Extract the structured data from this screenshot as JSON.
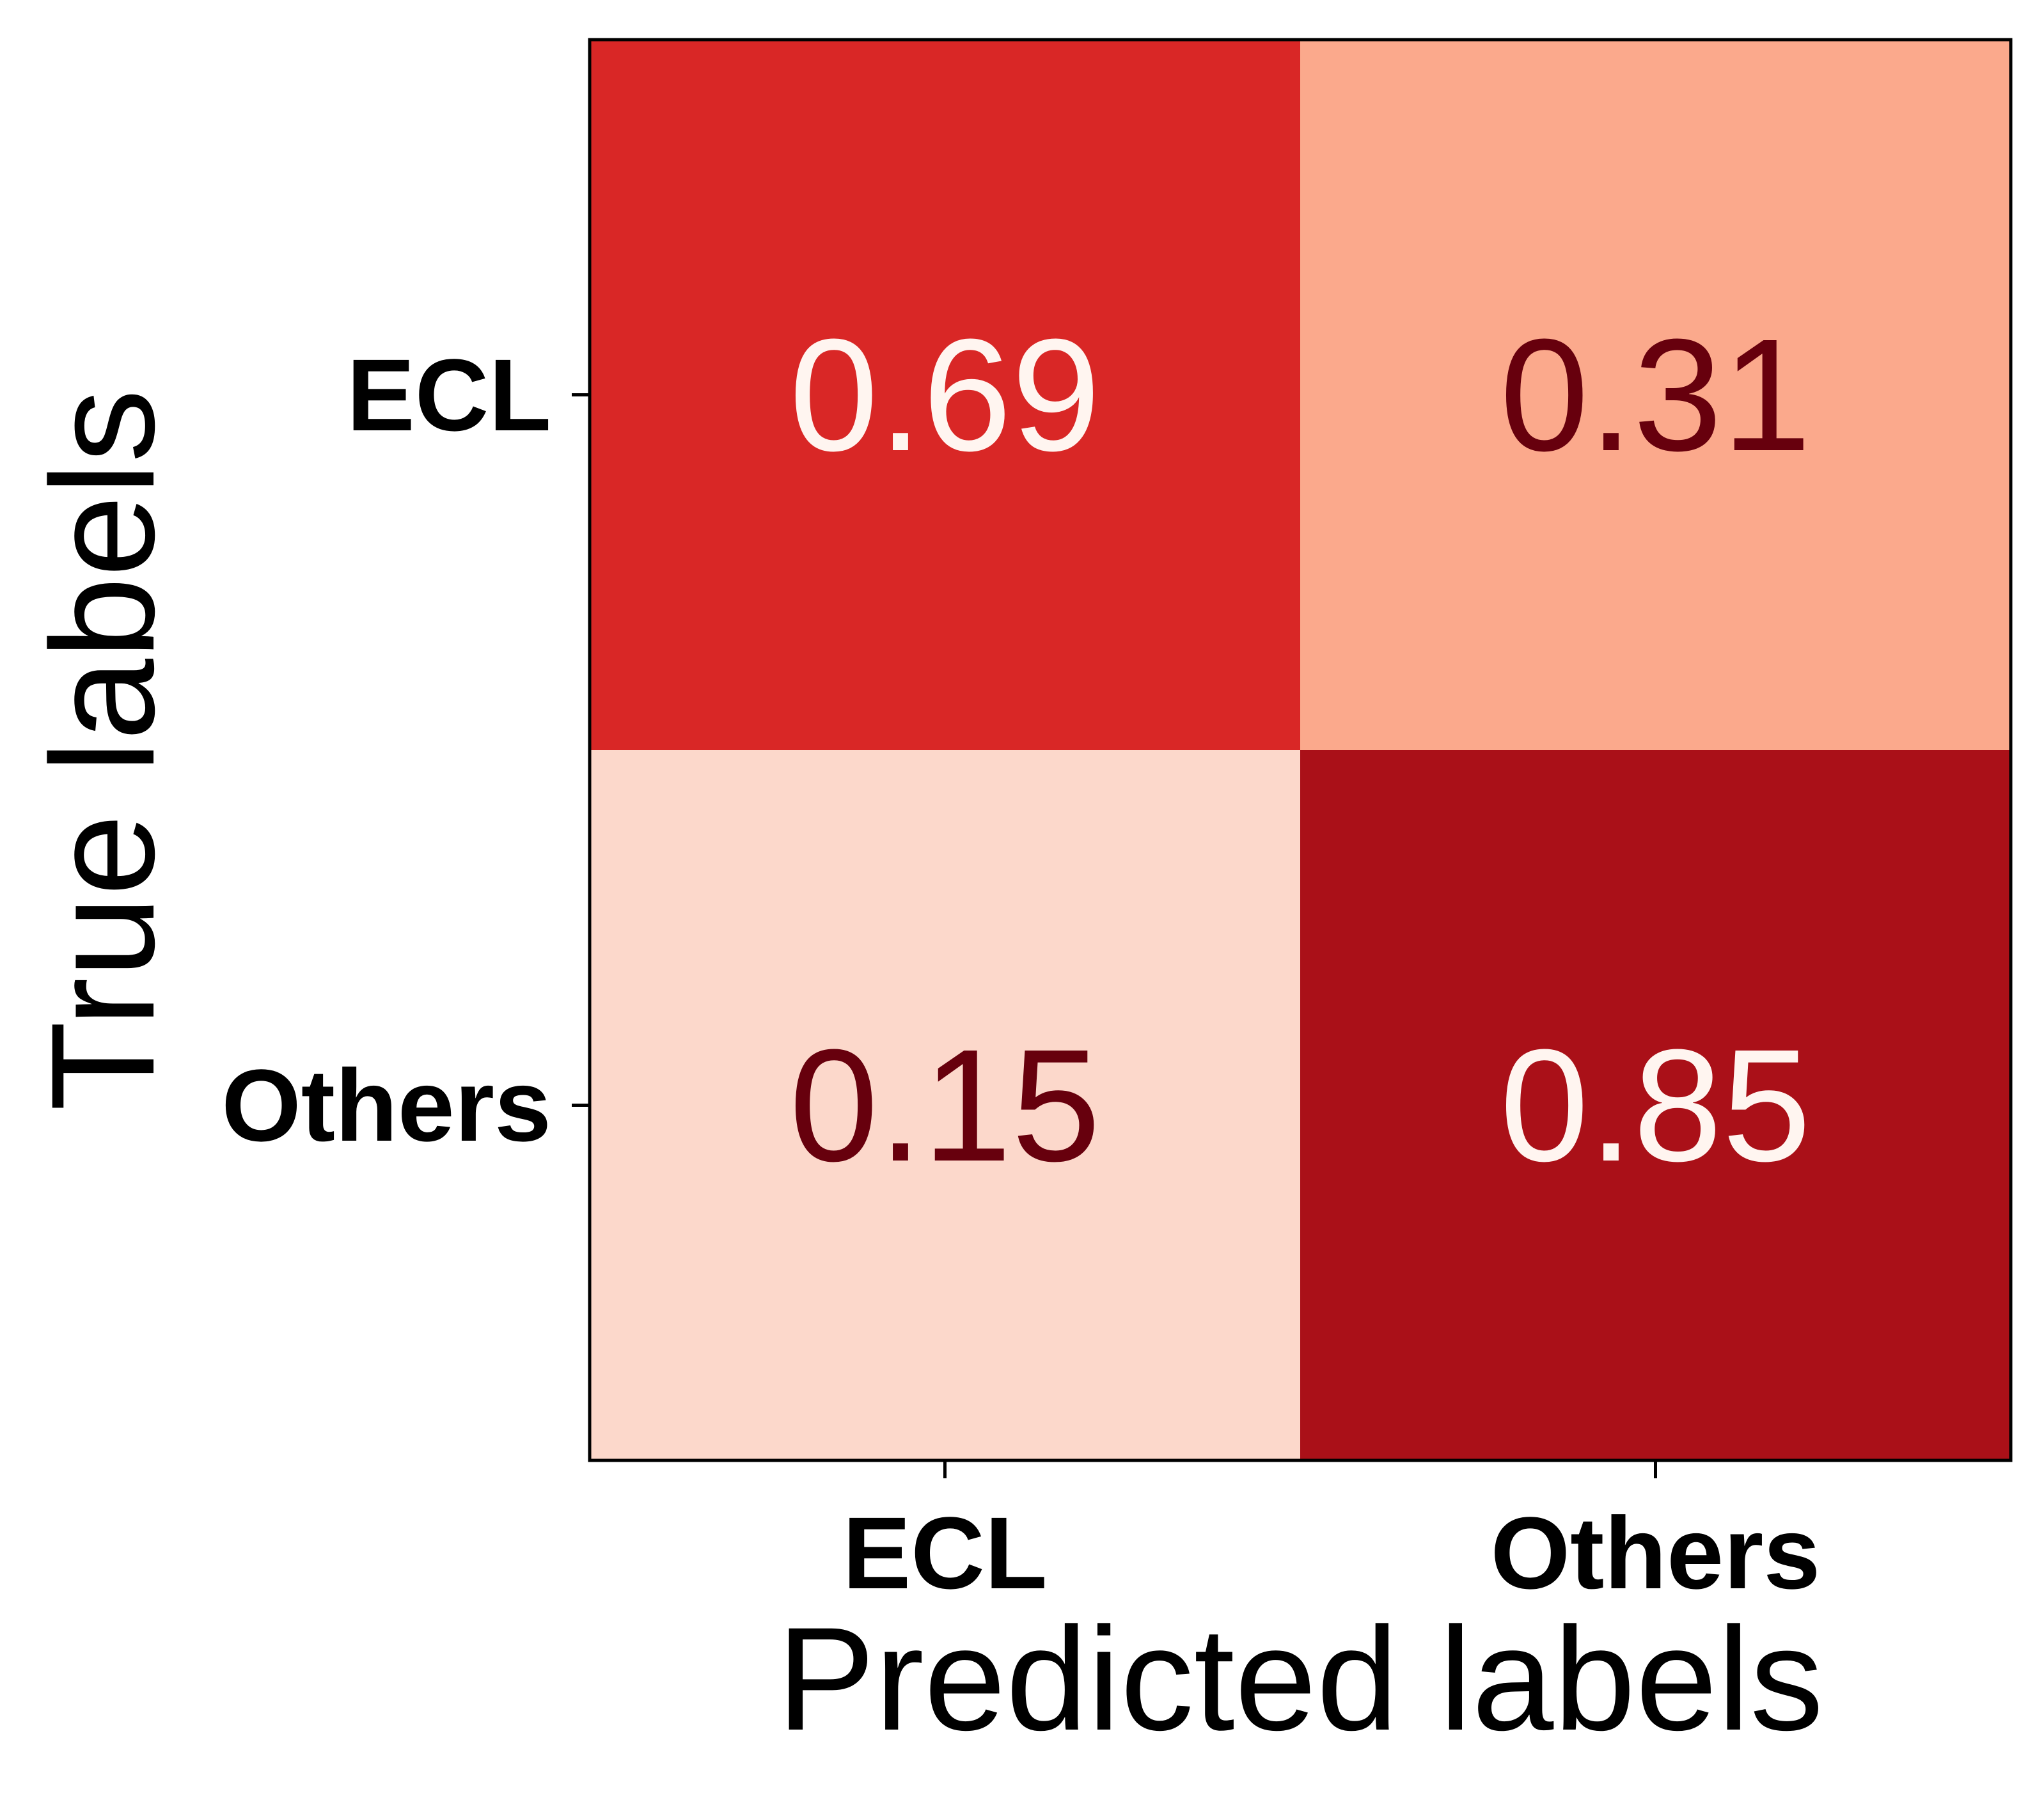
{
  "chart_data": {
    "type": "heatmap",
    "xlabel": "Predicted labels",
    "ylabel": "True labels",
    "x_categories": [
      "ECL",
      "Others"
    ],
    "y_categories": [
      "ECL",
      "Others"
    ],
    "values": [
      [
        0.69,
        0.31
      ],
      [
        0.15,
        0.85
      ]
    ],
    "value_labels": [
      [
        "0.69",
        "0.31"
      ],
      [
        "0.15",
        "0.85"
      ]
    ],
    "colormap": "Reds",
    "cell_colors": [
      [
        "#d92726",
        "#fba98c"
      ],
      [
        "#fcd8cb",
        "#aa1018"
      ]
    ],
    "text_colors": [
      [
        "#fff5f0",
        "#67000d"
      ],
      [
        "#67000d",
        "#fff5f0"
      ]
    ],
    "grid": false,
    "legend": "none"
  }
}
